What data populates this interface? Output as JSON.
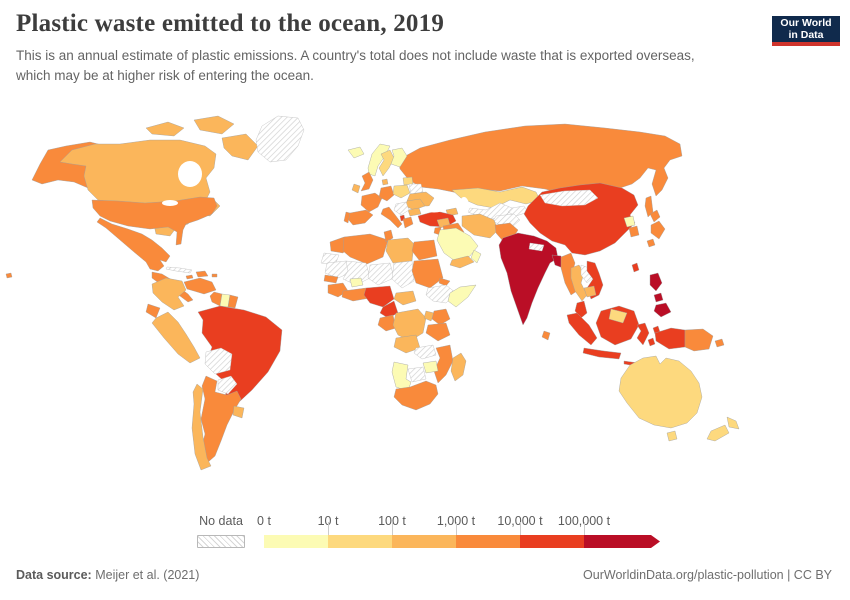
{
  "header": {
    "title": "Plastic waste emitted to the ocean, 2019",
    "subtitle": "This is an annual estimate of plastic emissions. A country's total does not include waste that is exported overseas, which may be at higher risk of entering the ocean.",
    "logo": {
      "line1": "Our World",
      "line2": "in Data",
      "bg_color": "#102a4c",
      "accent_color": "#d0342c"
    }
  },
  "footer": {
    "source_label": "Data source:",
    "source_value": " Meijer et al. (2021)",
    "attribution": "OurWorldinData.org/plastic-pollution | CC BY"
  },
  "legend": {
    "no_data_label": "No data",
    "tick_labels": [
      "0 t",
      "10 t",
      "100 t",
      "1,000 t",
      "10,000 t",
      "100,000 t"
    ],
    "bucket_colors": [
      "#FCFBB4",
      "#FDD97E",
      "#FBB65B",
      "#F98A3B",
      "#E93E20",
      "#BA0E26"
    ]
  },
  "chart_data": {
    "type": "choropleth",
    "title": "Plastic waste emitted to the ocean",
    "year": 2019,
    "unit": "t (tonnes per year)",
    "bucket_ranges": [
      "0–10 t",
      "10–100 t",
      "100–1,000 t",
      "1,000–10,000 t",
      "10,000–100,000 t",
      "100,000+ t"
    ],
    "no_data_style": "hatched",
    "countries": {
      "greenland": null,
      "canada": 2,
      "usa": 3,
      "mexico": 3,
      "central-america": 3,
      "cuba": null,
      "hispaniola": 3,
      "jamaica": 3,
      "puerto-rico": 3,
      "colombia": 2,
      "venezuela": 3,
      "guyana": 3,
      "suriname": 0,
      "french-guiana": 3,
      "ecuador": 3,
      "peru": 2,
      "brazil": 4,
      "bolivia": null,
      "paraguay": null,
      "argentina": 3,
      "chile": 2,
      "uruguay": 2,
      "iceland": 0,
      "norway": 0,
      "sweden": 1,
      "finland": 0,
      "denmark": 2,
      "uk": 3,
      "ireland": 2,
      "france": 3,
      "spain": 3,
      "portugal": 3,
      "germany": 3,
      "poland": 1,
      "baltics": 1,
      "belarus": null,
      "ukraine": 2,
      "romania": 2,
      "bulgaria": 2,
      "italy": 3,
      "balkans": null,
      "albania": 4,
      "greece": 3,
      "russia": 3,
      "kazakhstan": 1,
      "uzbekistan-turkmenistan": null,
      "kyrgyzstan-tajikistan": null,
      "afghanistan": null,
      "caucasus": 2,
      "turkey": 4,
      "syria": 2,
      "iraq": 3,
      "iran": 2,
      "saudi-arabia": 0,
      "yemen": 2,
      "oman": 0,
      "israel-jordan": 3,
      "morocco": 3,
      "western-sahara": null,
      "algeria": 3,
      "tunisia": 3,
      "libya": 2,
      "egypt": 3,
      "mauritania": null,
      "mali": null,
      "niger": null,
      "chad": null,
      "sudan": 3,
      "eritrea": 3,
      "ethiopia": null,
      "somalia": 0,
      "senegal": 3,
      "guinea": 3,
      "burkina-faso": 0,
      "ghana-ivory-coast": 3,
      "nigeria": 4,
      "cameroon": 4,
      "central-african-republic": 2,
      "congo-gabon": 3,
      "dr-congo": 2,
      "uganda": 2,
      "kenya": 3,
      "tanzania": 3,
      "angola": 2,
      "zambia": null,
      "mozambique": 3,
      "zimbabwe": 0,
      "botswana": null,
      "namibia": 0,
      "south-africa": 3,
      "madagascar": 2,
      "pakistan": 3,
      "india": 5,
      "nepal": null,
      "bangladesh": 5,
      "sri-lanka": 3,
      "myanmar": 3,
      "china": 4,
      "mongolia": null,
      "north-korea": 0,
      "south-korea": 3,
      "japan": 3,
      "taiwan": 4,
      "thailand": 2,
      "laos": null,
      "vietnam": 4,
      "cambodia": 2,
      "malaysia": 4,
      "brunei": 1,
      "indonesia": 4,
      "philippines": 5,
      "papua-new-guinea": 3,
      "australia": 1,
      "new-zealand": 1
    }
  }
}
